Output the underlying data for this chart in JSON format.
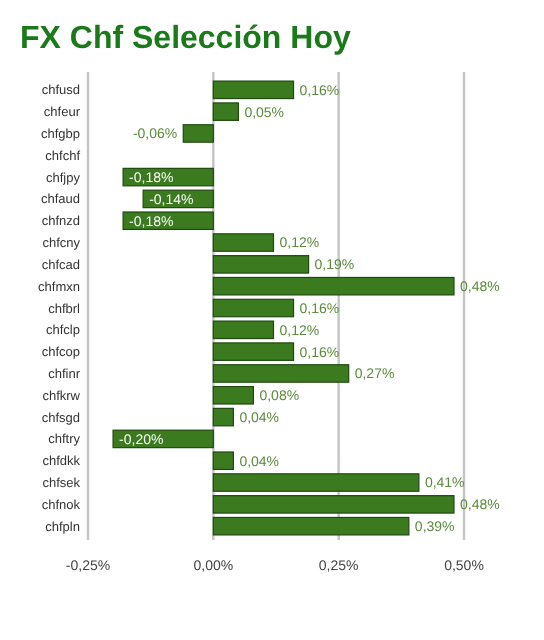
{
  "chart_data": {
    "type": "bar",
    "orientation": "horizontal",
    "title": "FX Chf Selección Hoy",
    "categories": [
      "chfusd",
      "chfeur",
      "chfgbp",
      "chfchf",
      "chfjpy",
      "chfaud",
      "chfnzd",
      "chfcny",
      "chfcad",
      "chfmxn",
      "chfbrl",
      "chfclp",
      "chfcop",
      "chfinr",
      "chfkrw",
      "chfsgd",
      "chftry",
      "chfdkk",
      "chfsek",
      "chfnok",
      "chfpln"
    ],
    "values": [
      0.16,
      0.05,
      -0.06,
      null,
      -0.18,
      -0.14,
      -0.18,
      0.12,
      0.19,
      0.48,
      0.16,
      0.12,
      0.16,
      0.27,
      0.08,
      0.04,
      -0.2,
      0.04,
      0.41,
      0.48,
      0.39
    ],
    "value_labels": [
      "0,16%",
      "0,05%",
      "-0,06%",
      null,
      "-0,18%",
      "-0,14%",
      "-0,18%",
      "0,12%",
      "0,19%",
      "0,48%",
      "0,16%",
      "0,12%",
      "0,16%",
      "0,27%",
      "0,08%",
      "0,04%",
      "-0,20%",
      "0,04%",
      "0,41%",
      "0,48%",
      "0,39%"
    ],
    "color": "#3b7a1f",
    "xlim": [
      -0.25,
      0.5
    ],
    "xticks": [
      {
        "value": -0.25,
        "label": "-0,25%"
      },
      {
        "value": 0,
        "label": "0,00%"
      },
      {
        "value": 0.25,
        "label": "0,25%"
      },
      {
        "value": 0.5,
        "label": "0,50%"
      }
    ],
    "grid": "x"
  }
}
